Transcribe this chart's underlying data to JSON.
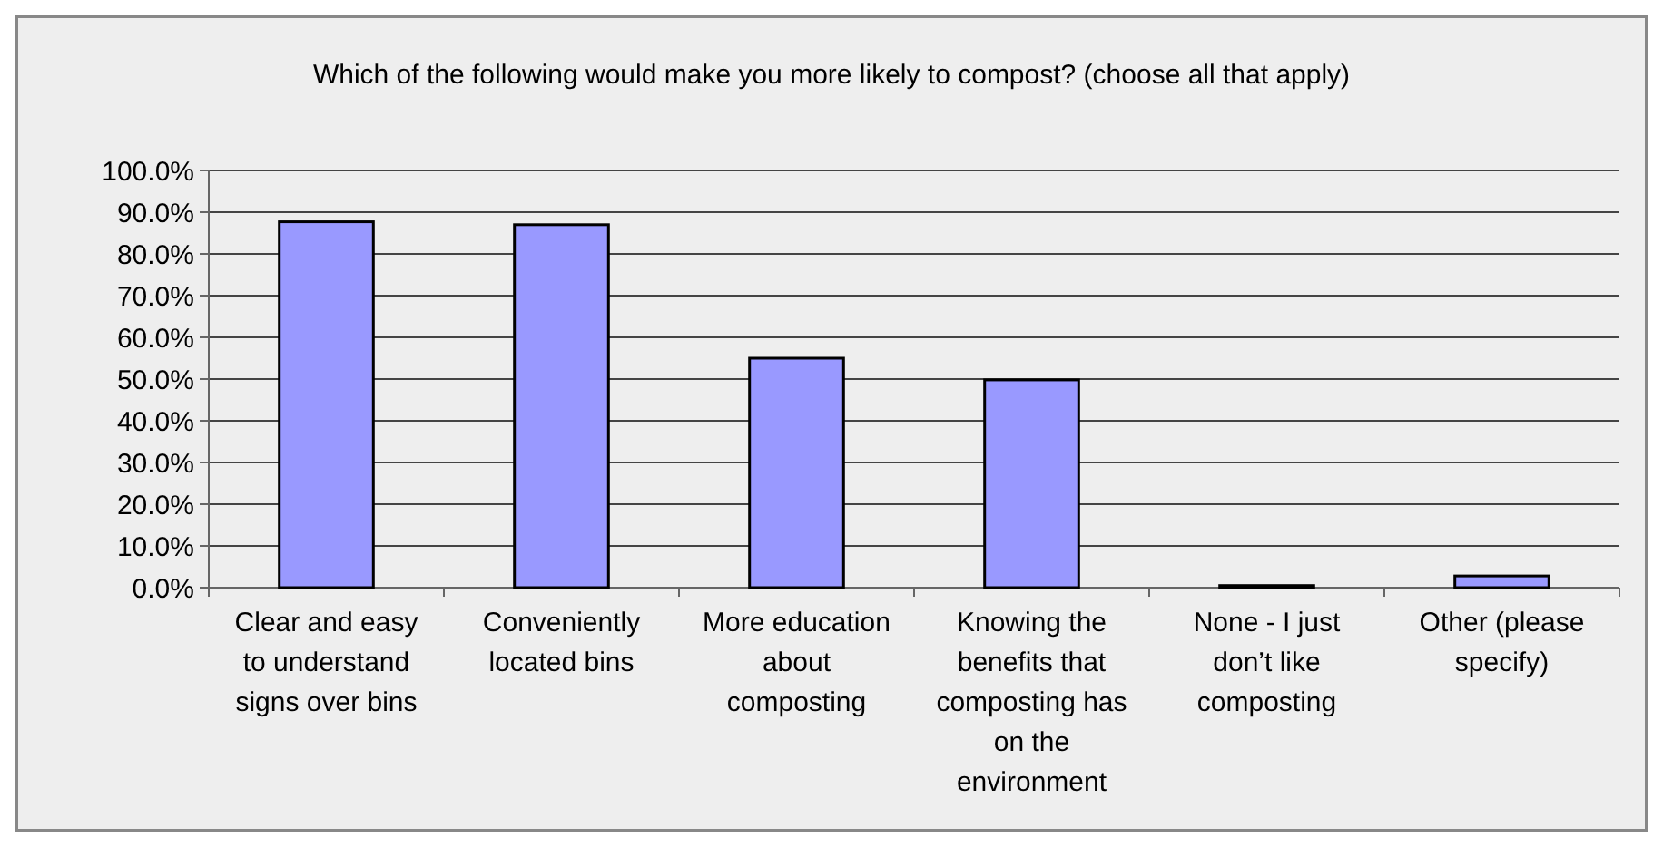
{
  "chart_data": {
    "type": "bar",
    "title": "Which of the following would make you more likely to compost? (choose all that apply)",
    "categories": [
      "Clear and easy to understand signs over bins",
      "Conveniently located bins",
      "More education about composting",
      "Knowing the benefits that composting has on the environment",
      "None - I just don’t like composting",
      "Other (please specify)"
    ],
    "values": [
      87.7,
      87.0,
      55.0,
      49.8,
      0.5,
      2.8
    ],
    "color": "#9999ff",
    "ylim": [
      0,
      100
    ],
    "yticks": [
      {
        "value": 0,
        "label": "0.0%"
      },
      {
        "value": 10,
        "label": "10.0%"
      },
      {
        "value": 20,
        "label": "20.0%"
      },
      {
        "value": 30,
        "label": "30.0%"
      },
      {
        "value": 40,
        "label": "40.0%"
      },
      {
        "value": 50,
        "label": "50.0%"
      },
      {
        "value": 60,
        "label": "60.0%"
      },
      {
        "value": 70,
        "label": "70.0%"
      },
      {
        "value": 80,
        "label": "80.0%"
      },
      {
        "value": 90,
        "label": "90.0%"
      },
      {
        "value": 100,
        "label": "100.0%"
      }
    ],
    "grid": true
  }
}
